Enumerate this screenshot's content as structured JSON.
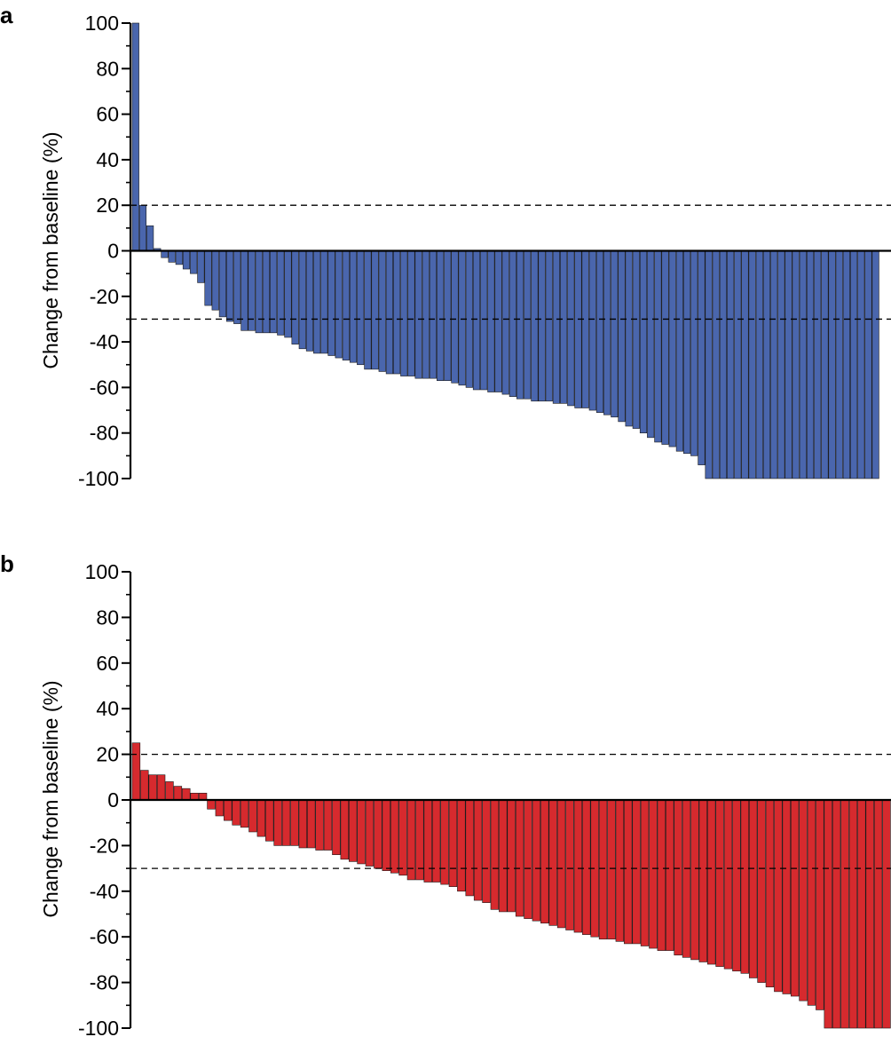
{
  "chart_data": [
    {
      "panel": "a",
      "type": "bar",
      "ylabel": "Change from baseline (%)",
      "ylim": [
        -100,
        100
      ],
      "yticks": [
        100,
        80,
        60,
        40,
        20,
        0,
        -20,
        -40,
        -60,
        -80,
        -100
      ],
      "reference_lines": [
        20,
        -30
      ],
      "color": "#4a66ad",
      "values": [
        100,
        20,
        11,
        1,
        -3,
        -5,
        -6,
        -8,
        -10,
        -14,
        -24,
        -26,
        -29,
        -31,
        -32,
        -35,
        -35,
        -36,
        -36,
        -36,
        -37,
        -38,
        -41,
        -43,
        -44,
        -45,
        -45,
        -46,
        -47,
        -48,
        -49,
        -50,
        -52,
        -52,
        -53,
        -54,
        -54,
        -55,
        -55,
        -56,
        -56,
        -56,
        -57,
        -57,
        -58,
        -59,
        -60,
        -61,
        -61,
        -62,
        -62,
        -63,
        -64,
        -65,
        -65,
        -66,
        -66,
        -66,
        -67,
        -67,
        -68,
        -69,
        -69,
        -70,
        -71,
        -72,
        -73,
        -75,
        -77,
        -78,
        -80,
        -82,
        -84,
        -85,
        -86,
        -88,
        -89,
        -90,
        -94,
        -100,
        -100,
        -100,
        -100,
        -100,
        -100,
        -100,
        -100,
        -100,
        -100,
        -100,
        -100,
        -100,
        -100,
        -100,
        -100,
        -100,
        -100,
        -100,
        -100,
        -100,
        -100,
        -100,
        -100
      ]
    },
    {
      "panel": "b",
      "type": "bar",
      "ylabel": "Change from baseline (%)",
      "ylim": [
        -100,
        100
      ],
      "yticks": [
        100,
        80,
        60,
        40,
        20,
        0,
        -20,
        -40,
        -60,
        -80,
        -100
      ],
      "reference_lines": [
        20,
        -30
      ],
      "color": "#d62a2e",
      "values": [
        25,
        13,
        11,
        11,
        8,
        6,
        5,
        3,
        3,
        -4,
        -7,
        -9,
        -11,
        -12,
        -14,
        -16,
        -18,
        -20,
        -20,
        -20,
        -21,
        -21,
        -22,
        -22,
        -24,
        -26,
        -27,
        -28,
        -29,
        -30,
        -31,
        -32,
        -33,
        -35,
        -35,
        -36,
        -36,
        -37,
        -38,
        -40,
        -42,
        -44,
        -45,
        -48,
        -49,
        -49,
        -51,
        -52,
        -53,
        -54,
        -55,
        -56,
        -57,
        -58,
        -59,
        -60,
        -61,
        -61,
        -62,
        -63,
        -63,
        -64,
        -65,
        -66,
        -66,
        -68,
        -69,
        -70,
        -71,
        -72,
        -73,
        -74,
        -75,
        -76,
        -78,
        -80,
        -82,
        -84,
        -85,
        -86,
        -88,
        -90,
        -92,
        -100,
        -100,
        -100,
        -100,
        -100,
        -100,
        -100,
        -100
      ]
    }
  ]
}
